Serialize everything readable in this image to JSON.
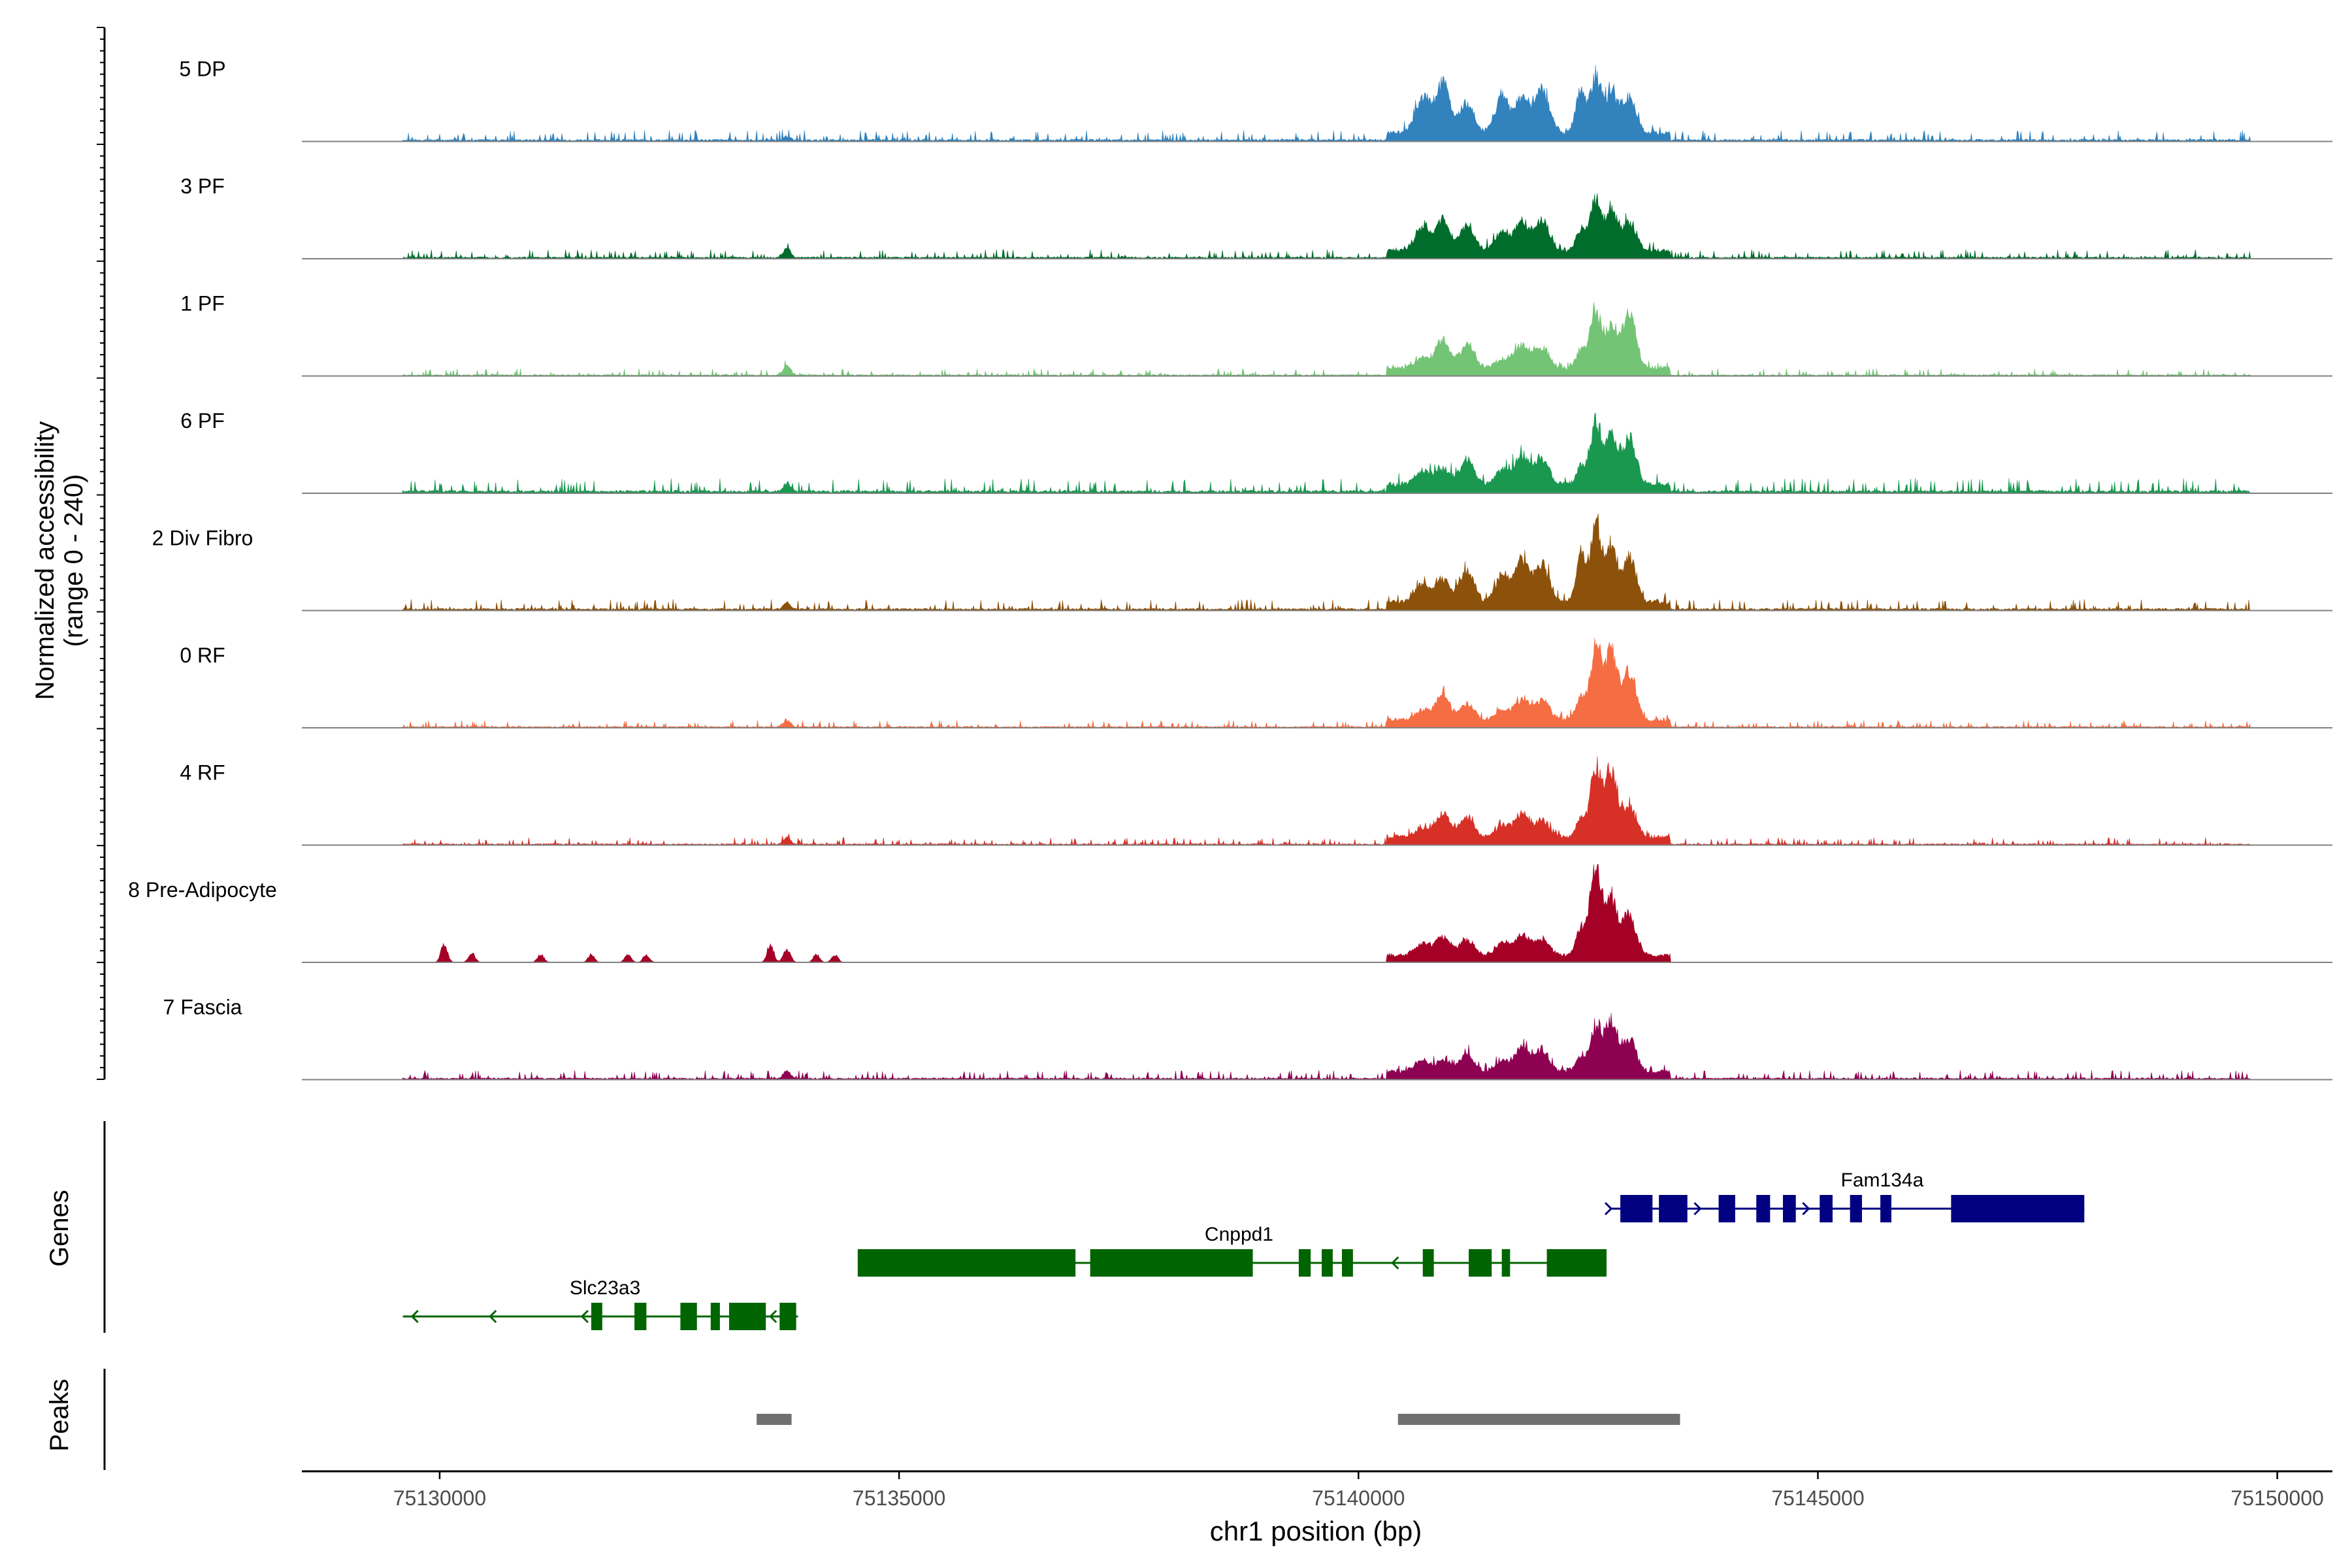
{
  "chart_data": {
    "type": "area",
    "title": "",
    "ylabel_line1": "Normalized accessibility",
    "ylabel_line2": "(range 0 - 240)",
    "ylim": [
      0,
      240
    ],
    "xlabel": "chr1 position (bp)",
    "xlim": [
      75128500,
      75150600
    ],
    "xticks": [
      75130000,
      75135000,
      75140000,
      75145000,
      75150000
    ],
    "xtick_labels": [
      "75130000",
      "75135000",
      "75140000",
      "75145000",
      "75150000"
    ],
    "genes_panel_label": "Genes",
    "peaks_panel_label": "Peaks",
    "bg_region": [
      75129600,
      75149700
    ],
    "tracks": [
      {
        "name": "5 DP",
        "color": "#3182BD",
        "bg": 0.03,
        "peaks": [
          [
            75140500,
            1200,
            30
          ],
          [
            75140850,
            130,
            0
          ],
          [
            75140950,
            200,
            22
          ],
          [
            75141050,
            90,
            0
          ],
          [
            75141120,
            110,
            0
          ],
          [
            75141550,
            150,
            0
          ],
          [
            75141650,
            120,
            0
          ],
          [
            75141800,
            220,
            60
          ],
          [
            75141950,
            150,
            0
          ],
          [
            75142050,
            180,
            0
          ],
          [
            75142400,
            160,
            0
          ],
          [
            75142550,
            160,
            0
          ],
          [
            75142650,
            170,
            0
          ],
          [
            75142750,
            160,
            0
          ],
          [
            75142900,
            200,
            24
          ],
          [
            75143000,
            140,
            0
          ],
          [
            75133800,
            90,
            8
          ]
        ],
        "peak_heights": [
          56,
          78,
          46,
          58,
          50,
          66,
          64,
          82,
          60,
          54,
          5
        ]
      },
      {
        "name": "3 PF",
        "color": "#006D2C",
        "bg": 0.025,
        "peaks": [
          [
            75140500,
            1200,
            0
          ],
          [
            75140850,
            130,
            0
          ],
          [
            75140950,
            200,
            0
          ],
          [
            75141050,
            90,
            0
          ],
          [
            75141120,
            110,
            0
          ],
          [
            75141550,
            150,
            0
          ],
          [
            75141650,
            120,
            0
          ],
          [
            75141800,
            220,
            0
          ],
          [
            75141950,
            150,
            0
          ],
          [
            75142050,
            180,
            0
          ],
          [
            75142400,
            160,
            0
          ],
          [
            75142550,
            160,
            0
          ],
          [
            75142650,
            170,
            0
          ],
          [
            75142750,
            160,
            0
          ],
          [
            75142900,
            200,
            0
          ],
          [
            75143000,
            140,
            0
          ],
          [
            75133800,
            90,
            0
          ]
        ],
        "peak_heights": [
          34,
          46,
          38,
          28,
          44,
          46,
          30,
          76,
          60,
          44,
          14
        ]
      },
      {
        "name": "1 PF",
        "color": "#74C476",
        "bg": 0.02,
        "peaks": [
          [
            75140500,
            1200,
            0
          ],
          [
            75140850,
            130,
            0
          ],
          [
            75140950,
            200,
            0
          ],
          [
            75141050,
            90,
            0
          ],
          [
            75141120,
            110,
            0
          ],
          [
            75141550,
            150,
            0
          ],
          [
            75141650,
            120,
            0
          ],
          [
            75141800,
            220,
            0
          ],
          [
            75141950,
            150,
            0
          ],
          [
            75142050,
            180,
            0
          ],
          [
            75142400,
            160,
            0
          ],
          [
            75142550,
            160,
            0
          ],
          [
            75142650,
            170,
            0
          ],
          [
            75142750,
            160,
            0
          ],
          [
            75142900,
            200,
            0
          ],
          [
            75143000,
            140,
            0
          ],
          [
            75133800,
            90,
            0
          ]
        ],
        "peak_heights": [
          16,
          44,
          36,
          12,
          36,
          30,
          26,
          90,
          58,
          84,
          14
        ]
      },
      {
        "name": "6 PF",
        "color": "#1A9850",
        "bg": 0.04,
        "peaks": [
          [
            75140500,
            1200,
            0
          ],
          [
            75140850,
            130,
            0
          ],
          [
            75140950,
            200,
            0
          ],
          [
            75141050,
            90,
            0
          ],
          [
            75141120,
            110,
            0
          ],
          [
            75141550,
            150,
            0
          ],
          [
            75141650,
            120,
            0
          ],
          [
            75141800,
            220,
            0
          ],
          [
            75141950,
            150,
            0
          ],
          [
            75142050,
            180,
            0
          ],
          [
            75142400,
            160,
            0
          ],
          [
            75142550,
            160,
            0
          ],
          [
            75142650,
            170,
            0
          ],
          [
            75142750,
            160,
            0
          ],
          [
            75142900,
            200,
            0
          ],
          [
            75143000,
            140,
            0
          ],
          [
            75133800,
            90,
            0
          ]
        ],
        "peak_heights": [
          20,
          26,
          36,
          22,
          44,
          38,
          24,
          92,
          72,
          70,
          12
        ]
      },
      {
        "name": "2 Div Fibro",
        "color": "#8C510A",
        "bg": 0.03,
        "peaks": [
          [
            75140500,
            1200,
            0
          ],
          [
            75140850,
            130,
            0
          ],
          [
            75140950,
            200,
            0
          ],
          [
            75141050,
            90,
            0
          ],
          [
            75141120,
            110,
            0
          ],
          [
            75141550,
            150,
            0
          ],
          [
            75141650,
            120,
            0
          ],
          [
            75141800,
            220,
            0
          ],
          [
            75141950,
            150,
            0
          ],
          [
            75142050,
            180,
            0
          ],
          [
            75142400,
            160,
            0
          ],
          [
            75142550,
            160,
            0
          ],
          [
            75142650,
            170,
            0
          ],
          [
            75142750,
            160,
            0
          ],
          [
            75142900,
            200,
            0
          ],
          [
            75143000,
            140,
            0
          ],
          [
            75133800,
            90,
            0
          ]
        ],
        "peak_heights": [
          26,
          34,
          48,
          40,
          64,
          56,
          72,
          112,
          80,
          66,
          10
        ]
      },
      {
        "name": "0 RF",
        "color": "#F46D43",
        "bg": 0.02,
        "peaks": [
          [
            75140500,
            1200,
            0
          ],
          [
            75140850,
            130,
            0
          ],
          [
            75140950,
            200,
            0
          ],
          [
            75141050,
            90,
            0
          ],
          [
            75141120,
            110,
            0
          ],
          [
            75141550,
            150,
            0
          ],
          [
            75141650,
            120,
            0
          ],
          [
            75141800,
            220,
            0
          ],
          [
            75141950,
            150,
            0
          ],
          [
            75142050,
            180,
            0
          ],
          [
            75142400,
            160,
            0
          ],
          [
            75142550,
            160,
            0
          ],
          [
            75142650,
            170,
            0
          ],
          [
            75142750,
            160,
            0
          ],
          [
            75142900,
            200,
            0
          ],
          [
            75143000,
            140,
            0
          ],
          [
            75133800,
            90,
            0
          ]
        ],
        "peak_heights": [
          14,
          40,
          24,
          14,
          32,
          30,
          34,
          110,
          104,
          72,
          10
        ]
      },
      {
        "name": "4 RF",
        "color": "#D73027",
        "bg": 0.02,
        "peaks": [
          [
            75140500,
            1200,
            0
          ],
          [
            75140850,
            130,
            0
          ],
          [
            75140950,
            200,
            0
          ],
          [
            75141050,
            90,
            0
          ],
          [
            75141120,
            110,
            0
          ],
          [
            75141550,
            150,
            0
          ],
          [
            75141650,
            120,
            0
          ],
          [
            75141800,
            220,
            0
          ],
          [
            75141950,
            150,
            0
          ],
          [
            75142050,
            180,
            0
          ],
          [
            75142400,
            160,
            0
          ],
          [
            75142550,
            160,
            0
          ],
          [
            75142650,
            170,
            0
          ],
          [
            75142750,
            160,
            0
          ],
          [
            75142900,
            200,
            0
          ],
          [
            75143000,
            140,
            0
          ],
          [
            75133800,
            90,
            0
          ]
        ],
        "peak_heights": [
          12,
          36,
          30,
          18,
          36,
          24,
          26,
          106,
          104,
          44,
          10
        ]
      },
      {
        "name": "8 Pre-Adipocyte",
        "color": "#A50026",
        "bg": 0.0,
        "peaks": [
          [
            75140500,
            1200,
            0
          ],
          [
            75140850,
            130,
            0
          ],
          [
            75140950,
            200,
            0
          ],
          [
            75141050,
            90,
            0
          ],
          [
            75141120,
            110,
            0
          ],
          [
            75141550,
            150,
            0
          ],
          [
            75141650,
            120,
            0
          ],
          [
            75141800,
            220,
            0
          ],
          [
            75141950,
            150,
            0
          ],
          [
            75142050,
            180,
            0
          ],
          [
            75142400,
            160,
            0
          ],
          [
            75142550,
            160,
            0
          ],
          [
            75142650,
            170,
            0
          ],
          [
            75142750,
            160,
            0
          ],
          [
            75142900,
            200,
            0
          ],
          [
            75143000,
            140,
            0
          ],
          [
            75133800,
            90,
            0
          ]
        ],
        "peak_heights": [
          18,
          30,
          24,
          20,
          30,
          24,
          40,
          140,
          90,
          62,
          20
        ],
        "left_blips": [
          [
            75130050,
            28
          ],
          [
            75130350,
            14
          ],
          [
            75131100,
            12
          ],
          [
            75131650,
            12
          ],
          [
            75132050,
            12
          ],
          [
            75132250,
            12
          ],
          [
            75133600,
            28
          ],
          [
            75134100,
            12
          ],
          [
            75134300,
            12
          ]
        ]
      },
      {
        "name": "7 Fascia",
        "color": "#8E0152",
        "bg": 0.025,
        "peaks": [
          [
            75140500,
            1200,
            0
          ],
          [
            75140850,
            130,
            0
          ],
          [
            75140950,
            200,
            0
          ],
          [
            75141050,
            90,
            0
          ],
          [
            75141120,
            110,
            0
          ],
          [
            75141550,
            150,
            0
          ],
          [
            75141650,
            120,
            0
          ],
          [
            75141800,
            220,
            0
          ],
          [
            75141950,
            150,
            0
          ],
          [
            75142050,
            180,
            0
          ],
          [
            75142400,
            160,
            0
          ],
          [
            75142550,
            160,
            0
          ],
          [
            75142650,
            170,
            0
          ],
          [
            75142750,
            160,
            0
          ],
          [
            75142900,
            200,
            0
          ],
          [
            75143000,
            140,
            0
          ],
          [
            75133800,
            90,
            0
          ]
        ],
        "peak_heights": [
          16,
          16,
          26,
          14,
          36,
          30,
          22,
          68,
          78,
          50,
          12
        ]
      }
    ],
    "genes": [
      {
        "name": "Slc23a3",
        "strand": "-",
        "color": "#006400",
        "row": 2,
        "line": [
          75129600,
          75133900
        ],
        "exons": [
          [
            75131650,
            75131770
          ],
          [
            75132120,
            75132250
          ],
          [
            75132620,
            75132800
          ],
          [
            75132950,
            75133050
          ],
          [
            75133150,
            75133550
          ],
          [
            75133700,
            75133880
          ]
        ],
        "arrows": [
          75129700,
          75130550,
          75131550,
          75133600
        ]
      },
      {
        "name": "Cnppd1",
        "strand": "-",
        "color": "#006400",
        "row": 1,
        "line": [
          75134550,
          75142700
        ],
        "exons": [
          [
            75134550,
            75136920
          ],
          [
            75137080,
            75138850
          ],
          [
            75139350,
            75139480
          ],
          [
            75139600,
            75139720
          ],
          [
            75139820,
            75139940
          ],
          [
            75140700,
            75140820
          ],
          [
            75141200,
            75141450
          ],
          [
            75141560,
            75141650
          ],
          [
            75142050,
            75142700
          ]
        ],
        "arrows": [
          75140370
        ]
      },
      {
        "name": "Fam134a",
        "strand": "+",
        "color": "#000080",
        "row": 0,
        "line": [
          75142750,
          75147900
        ],
        "exons": [
          [
            75142850,
            75143200
          ],
          [
            75143270,
            75143580
          ],
          [
            75143920,
            75144100
          ],
          [
            75144330,
            75144480
          ],
          [
            75144620,
            75144760
          ],
          [
            75145020,
            75145160
          ],
          [
            75145350,
            75145480
          ],
          [
            75145680,
            75145800
          ],
          [
            75146450,
            75147900
          ]
        ],
        "arrows": [
          75142750,
          75143720,
          75144900
        ]
      }
    ],
    "peaks": [
      [
        75133450,
        75133830
      ],
      [
        75140430,
        75143500
      ]
    ]
  }
}
